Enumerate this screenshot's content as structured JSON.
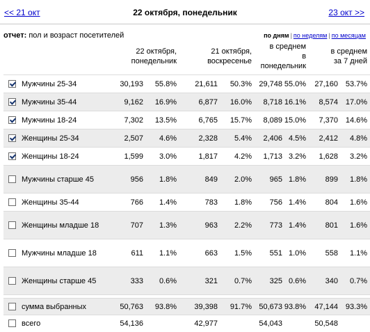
{
  "nav": {
    "prev": "<< 21 окт",
    "current": "22 октября, понедельник",
    "next": "23 окт >>"
  },
  "report": {
    "label_bold": "отчет:",
    "label_text": "пол и возраст посетителей"
  },
  "views": {
    "by_day": "по дням",
    "by_week": "по неделям",
    "by_month": "по месяцам",
    "separator": "|"
  },
  "columns": [
    {
      "line1": "22 октября,",
      "line2": "понедельник"
    },
    {
      "line1": "21 октября,",
      "line2": "воскресенье"
    },
    {
      "line1": "в среднем",
      "line2": "в",
      "line3": "понедельник"
    },
    {
      "line1": "в среднем",
      "line2": "за 7 дней"
    }
  ],
  "rows": [
    {
      "name": "Мужчины 25-34",
      "checked": true,
      "c1": "30,193",
      "p1": "55.8%",
      "c2": "21,611",
      "p2": "50.3%",
      "c3": "29,748",
      "p3": "55.0%",
      "c4": "27,160",
      "p4": "53.7%"
    },
    {
      "name": "Мужчины 35-44",
      "checked": true,
      "c1": "9,162",
      "p1": "16.9%",
      "c2": "6,877",
      "p2": "16.0%",
      "c3": "8,718",
      "p3": "16.1%",
      "c4": "8,574",
      "p4": "17.0%"
    },
    {
      "name": "Мужчины 18-24",
      "checked": true,
      "c1": "7,302",
      "p1": "13.5%",
      "c2": "6,765",
      "p2": "15.7%",
      "c3": "8,089",
      "p3": "15.0%",
      "c4": "7,370",
      "p4": "14.6%"
    },
    {
      "name": "Женщины 25-34",
      "checked": true,
      "c1": "2,507",
      "p1": "4.6%",
      "c2": "2,328",
      "p2": "5.4%",
      "c3": "2,406",
      "p3": "4.5%",
      "c4": "2,412",
      "p4": "4.8%"
    },
    {
      "name": "Женщины 18-24",
      "checked": true,
      "c1": "1,599",
      "p1": "3.0%",
      "c2": "1,817",
      "p2": "4.2%",
      "c3": "1,713",
      "p3": "3.2%",
      "c4": "1,628",
      "p4": "3.2%"
    },
    {
      "name": "Мужчины старше 45",
      "checked": false,
      "c1": "956",
      "p1": "1.8%",
      "c2": "849",
      "p2": "2.0%",
      "c3": "965",
      "p3": "1.8%",
      "c4": "899",
      "p4": "1.8%"
    },
    {
      "name": "Женщины 35-44",
      "checked": false,
      "c1": "766",
      "p1": "1.4%",
      "c2": "783",
      "p2": "1.8%",
      "c3": "756",
      "p3": "1.4%",
      "c4": "804",
      "p4": "1.6%"
    },
    {
      "name": "Женщины младше 18",
      "checked": false,
      "c1": "707",
      "p1": "1.3%",
      "c2": "963",
      "p2": "2.2%",
      "c3": "773",
      "p3": "1.4%",
      "c4": "801",
      "p4": "1.6%"
    },
    {
      "name": "Мужчины младше 18",
      "checked": false,
      "c1": "611",
      "p1": "1.1%",
      "c2": "663",
      "p2": "1.5%",
      "c3": "551",
      "p3": "1.0%",
      "c4": "558",
      "p4": "1.1%"
    },
    {
      "name": "Женщины старше 45",
      "checked": false,
      "c1": "333",
      "p1": "0.6%",
      "c2": "321",
      "p2": "0.7%",
      "c3": "325",
      "p3": "0.6%",
      "c4": "340",
      "p4": "0.7%"
    }
  ],
  "summary": {
    "name": "сумма выбранных",
    "checked": false,
    "c1": "50,763",
    "p1": "93.8%",
    "c2": "39,398",
    "p2": "91.7%",
    "c3": "50,673",
    "p3": "93.8%",
    "c4": "47,144",
    "p4": "93.3%"
  },
  "total": {
    "name": "всего",
    "checked": false,
    "c1": "54,136",
    "c2": "42,977",
    "c3": "54,043",
    "c4": "50,548"
  }
}
